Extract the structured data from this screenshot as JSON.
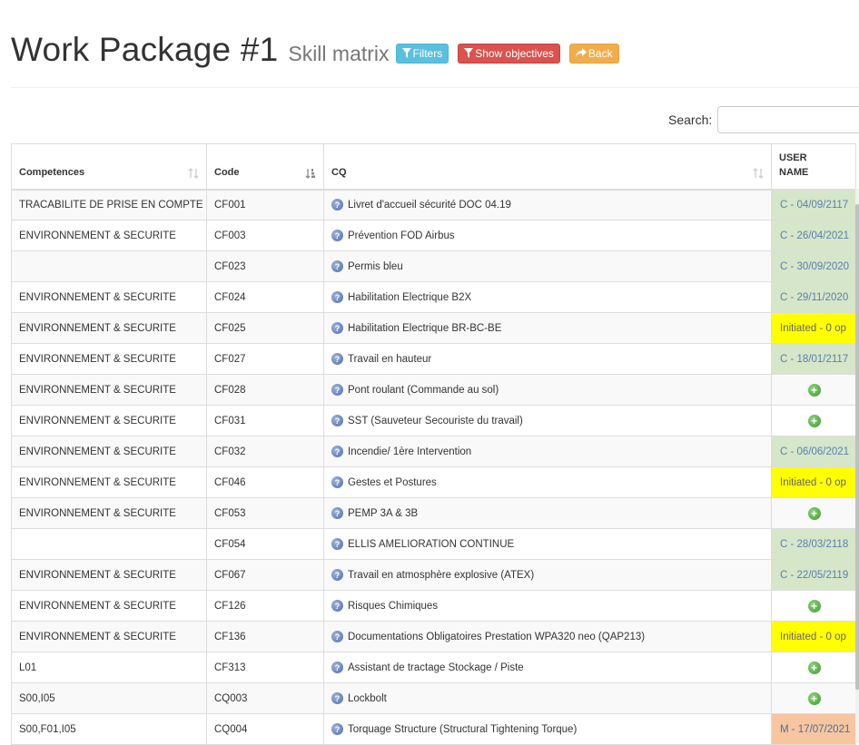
{
  "header": {
    "title": "Work Package #1",
    "subtitle": "Skill matrix",
    "filters_label": "Filters",
    "show_objectives_label": "Show objectives",
    "back_label": "Back"
  },
  "search": {
    "label": "Search:",
    "value": "",
    "placeholder": ""
  },
  "table": {
    "columns": [
      "Competences",
      "Code",
      "CQ",
      "USER NAME"
    ],
    "rows": [
      {
        "competence": "TRACABILITE DE PRISE EN COMPTE",
        "code": "CF001",
        "cq": "Livret d'accueil sécurité DOC 04.19",
        "status": "C - 04/09/2117",
        "status_type": "green"
      },
      {
        "competence": "ENVIRONNEMENT & SECURITE",
        "code": "CF003",
        "cq": "Prévention FOD Airbus",
        "status": "C - 26/04/2021",
        "status_type": "green"
      },
      {
        "competence": "",
        "code": "CF023",
        "cq": "Permis bleu",
        "status": "C - 30/09/2020",
        "status_type": "green"
      },
      {
        "competence": "ENVIRONNEMENT & SECURITE",
        "code": "CF024",
        "cq": "Habilitation Electrique B2X",
        "status": "C - 29/11/2020",
        "status_type": "green"
      },
      {
        "competence": "ENVIRONNEMENT & SECURITE",
        "code": "CF025",
        "cq": "Habilitation Electrique BR-BC-BE",
        "status": "Initiated - 0 op",
        "status_type": "yellow"
      },
      {
        "competence": "ENVIRONNEMENT & SECURITE",
        "code": "CF027",
        "cq": "Travail en hauteur",
        "status": "C - 18/01/2117",
        "status_type": "green"
      },
      {
        "competence": "ENVIRONNEMENT & SECURITE",
        "code": "CF028",
        "cq": "Pont roulant (Commande au sol)",
        "status": "",
        "status_type": "add"
      },
      {
        "competence": "ENVIRONNEMENT & SECURITE",
        "code": "CF031",
        "cq": "SST (Sauveteur Secouriste du travail)",
        "status": "",
        "status_type": "add"
      },
      {
        "competence": "ENVIRONNEMENT & SECURITE",
        "code": "CF032",
        "cq": "Incendie/ 1ère Intervention",
        "status": "C - 06/06/2021",
        "status_type": "green"
      },
      {
        "competence": "ENVIRONNEMENT & SECURITE",
        "code": "CF046",
        "cq": "Gestes et Postures",
        "status": "Initiated - 0 op",
        "status_type": "yellow"
      },
      {
        "competence": "ENVIRONNEMENT & SECURITE",
        "code": "CF053",
        "cq": "PEMP 3A & 3B",
        "status": "",
        "status_type": "add"
      },
      {
        "competence": "",
        "code": "CF054",
        "cq": "ELLIS AMELIORATION CONTINUE",
        "status": "C - 28/03/2118",
        "status_type": "green"
      },
      {
        "competence": "ENVIRONNEMENT & SECURITE",
        "code": "CF067",
        "cq": "Travail en atmosphère explosive (ATEX)",
        "status": "C - 22/05/2119",
        "status_type": "green"
      },
      {
        "competence": "ENVIRONNEMENT & SECURITE",
        "code": "CF126",
        "cq": "Risques Chimiques",
        "status": "",
        "status_type": "add"
      },
      {
        "competence": "ENVIRONNEMENT & SECURITE",
        "code": "CF136",
        "cq": "Documentations Obligatoires Prestation WPA320 neo (QAP213)",
        "status": "Initiated - 0 op",
        "status_type": "yellow"
      },
      {
        "competence": "L01",
        "code": "CF313",
        "cq": "Assistant de tractage Stockage / Piste",
        "status": "",
        "status_type": "add"
      },
      {
        "competence": "S00,I05",
        "code": "CQ003",
        "cq": "Lockbolt",
        "status": "",
        "status_type": "add"
      },
      {
        "competence": "S00,F01,I05",
        "code": "CQ004",
        "cq": "Torquage Structure (Structural Tightening Torque)",
        "status": "M - 17/07/2021",
        "status_type": "orange"
      }
    ]
  },
  "colors": {
    "filters": "#5bc0de",
    "show_objectives": "#d9534f",
    "back": "#f0ad4e",
    "status_green": "#d6e6c9",
    "status_yellow": "#ffff00",
    "status_orange": "#f7c59f"
  },
  "icons": [
    "filter-icon",
    "share-icon",
    "sort-icon",
    "sort-asc-icon",
    "help-icon",
    "plus-icon"
  ]
}
